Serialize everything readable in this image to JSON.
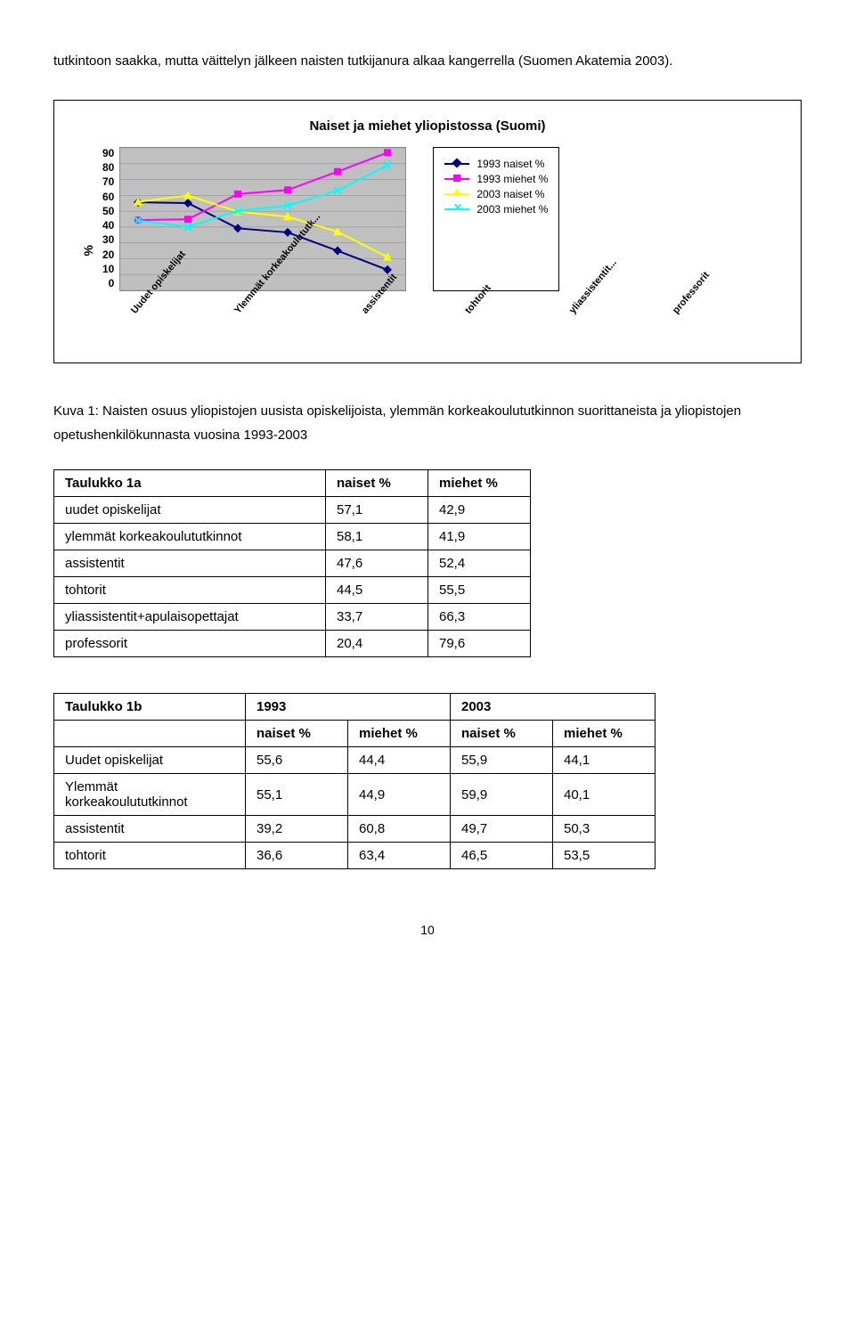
{
  "intro": "tutkintoon saakka, mutta väittelyn jälkeen naisten tutkijanura alkaa kangerrella (Suomen Akatemia 2003).",
  "chart": {
    "title": "Naiset ja miehet yliopistossa (Suomi)",
    "ylabel": "%",
    "ylim": [
      0,
      90
    ],
    "ytick_step": 10,
    "yticks": [
      "90",
      "80",
      "70",
      "60",
      "50",
      "40",
      "30",
      "20",
      "10",
      "0"
    ],
    "categories": [
      "Uudet opiskelijat",
      "Ylemmät korkeakoulututk...",
      "assistentit",
      "tohtorit",
      "yliassistentit...",
      "professorit"
    ],
    "series": [
      {
        "name": "1993 naiset %",
        "color": "#000080",
        "marker": "diamond",
        "values": [
          55.6,
          55.1,
          39.2,
          36.6,
          25.0,
          13.0
        ]
      },
      {
        "name": "1993 miehet %",
        "color": "#ff00ff",
        "marker": "square",
        "values": [
          44.4,
          44.9,
          60.8,
          63.4,
          75.0,
          87.0
        ]
      },
      {
        "name": "2003 naiset %",
        "color": "#ffff00",
        "marker": "triangle",
        "values": [
          55.9,
          59.9,
          49.7,
          46.5,
          37.0,
          21.0
        ]
      },
      {
        "name": "2003 miehet %",
        "color": "#00ffff",
        "marker": "x",
        "values": [
          44.1,
          40.1,
          50.3,
          53.5,
          63.0,
          79.0
        ]
      }
    ],
    "background": "#c0c0c0",
    "grid_color": "#888888"
  },
  "caption": "Kuva 1: Naisten osuus yliopistojen uusista opiskelijoista, ylemmän korkeakoulututkinnon suorittaneista ja yliopistojen opetushenkilökunnasta vuosina 1993-2003",
  "table1a": {
    "title": "Taulukko 1a",
    "headers": [
      "naiset %",
      "miehet %"
    ],
    "rows": [
      {
        "label": "uudet opiskelijat",
        "v": [
          "57,1",
          "42,9"
        ]
      },
      {
        "label": "ylemmät korkeakoulututkinnot",
        "v": [
          "58,1",
          "41,9"
        ]
      },
      {
        "label": "assistentit",
        "v": [
          "47,6",
          "52,4"
        ]
      },
      {
        "label": "tohtorit",
        "v": [
          "44,5",
          "55,5"
        ]
      },
      {
        "label": "yliassistentit+apulaisopettajat",
        "v": [
          "33,7",
          "66,3"
        ]
      },
      {
        "label": "professorit",
        "v": [
          "20,4",
          "79,6"
        ]
      }
    ]
  },
  "table1b": {
    "title": "Taulukko 1b",
    "year_headers": [
      "1993",
      "2003"
    ],
    "sub_headers": [
      "naiset %",
      "miehet %",
      "naiset %",
      "miehet %"
    ],
    "rows": [
      {
        "label": "Uudet opiskelijat",
        "v": [
          "55,6",
          "44,4",
          "55,9",
          "44,1"
        ]
      },
      {
        "label": "Ylemmät korkeakoulututkinnot",
        "v": [
          "55,1",
          "44,9",
          "59,9",
          "40,1"
        ]
      },
      {
        "label": "assistentit",
        "v": [
          "39,2",
          "60,8",
          "49,7",
          "50,3"
        ]
      },
      {
        "label": "tohtorit",
        "v": [
          "36,6",
          "63,4",
          "46,5",
          "53,5"
        ]
      }
    ]
  },
  "page_number": "10"
}
